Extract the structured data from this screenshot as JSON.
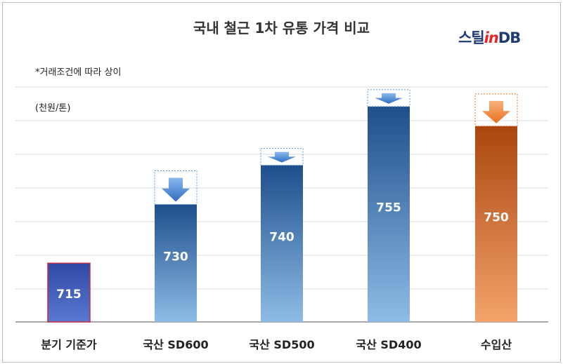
{
  "chart_data": {
    "type": "bar",
    "title": "국내 철근 1차 유통 가격 비교",
    "note": "*거래조건에 따라 상이",
    "unit": "(천원/톤)",
    "categories": [
      "분기 기준가",
      "국산 SD600",
      "국산 SD500",
      "국산 SD400",
      "수입산"
    ],
    "values": [
      715,
      730,
      740,
      755,
      750
    ],
    "value_labels": [
      "715",
      "730",
      "740",
      "755",
      "750"
    ],
    "ylim": [
      700,
      760
    ],
    "grid": true,
    "down_arrow_markers": [
      false,
      true,
      true,
      true,
      true
    ],
    "colors": {
      "base_bar": "#3a55b5",
      "base_bar_border": "#c0304a",
      "domestic_bar_top": "#1e4f8c",
      "domestic_bar_bottom": "#8fbce6",
      "import_bar_top": "#a9460f",
      "import_bar_bottom": "#f4a36a",
      "arrow_blue": "#3f7fd0",
      "arrow_orange": "#ee7a2c",
      "grid": "#d9d9d9"
    }
  },
  "logo": {
    "text_main": "스틸",
    "text_in": "in",
    "text_db": "DB"
  }
}
